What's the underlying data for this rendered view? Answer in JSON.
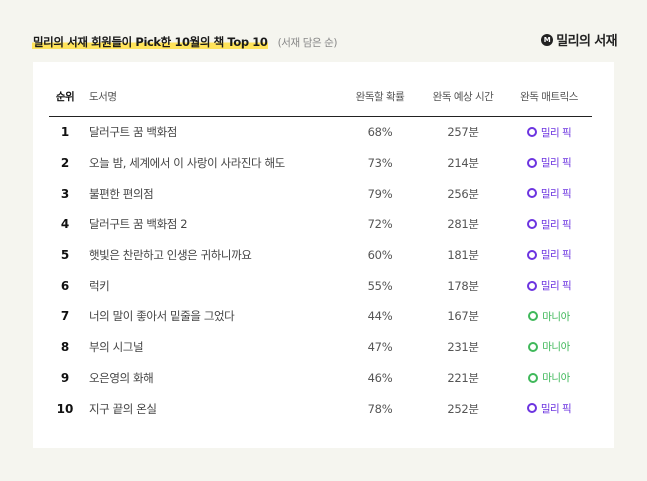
{
  "header": {
    "title": "밀리의 서재 회원들이 Pick한 10월의 책 Top 10",
    "subtitle": "(서재 담은 순)",
    "logo_text": "밀리의 서재",
    "logo_mark": "M"
  },
  "table": {
    "columns": [
      "순위",
      "도서명",
      "완독할 확률",
      "완독 예상 시간",
      "완독 매트릭스"
    ],
    "rows": [
      {
        "rank": "1",
        "title": "달러구트 꿈 백화점",
        "probability": "68%",
        "time": "257분",
        "matrix": "밀리 픽"
      },
      {
        "rank": "2",
        "title": "오늘 밤, 세계에서 이 사랑이 사라진다 해도",
        "probability": "73%",
        "time": "214분",
        "matrix": "밀리 픽"
      },
      {
        "rank": "3",
        "title": "불편한 편의점",
        "probability": "79%",
        "time": "256분",
        "matrix": "밀리 픽"
      },
      {
        "rank": "4",
        "title": "달러구트 꿈 백화점 2",
        "probability": "72%",
        "time": "281분",
        "matrix": "밀리 픽"
      },
      {
        "rank": "5",
        "title": "햇빛은 찬란하고 인생은 귀하니까요",
        "probability": "60%",
        "time": "181분",
        "matrix": "밀리 픽"
      },
      {
        "rank": "6",
        "title": "럭키",
        "probability": "55%",
        "time": "178분",
        "matrix": "밀리 픽"
      },
      {
        "rank": "7",
        "title": "너의 말이 좋아서 밑줄을 그었다",
        "probability": "44%",
        "time": "167분",
        "matrix": "마니아"
      },
      {
        "rank": "8",
        "title": "부의 시그널",
        "probability": "47%",
        "time": "231분",
        "matrix": "마니아"
      },
      {
        "rank": "9",
        "title": "오은영의 화해",
        "probability": "46%",
        "time": "221분",
        "matrix": "마니아"
      },
      {
        "rank": "10",
        "title": "지구 끝의 온실",
        "probability": "78%",
        "time": "252분",
        "matrix": "밀리 픽"
      }
    ]
  },
  "matrix_colors": {
    "밀리 픽": "#6c34e0",
    "마니아": "#3fb85a"
  },
  "colors": {
    "background": "#f5f5ef",
    "highlight": "#ffe35a"
  }
}
